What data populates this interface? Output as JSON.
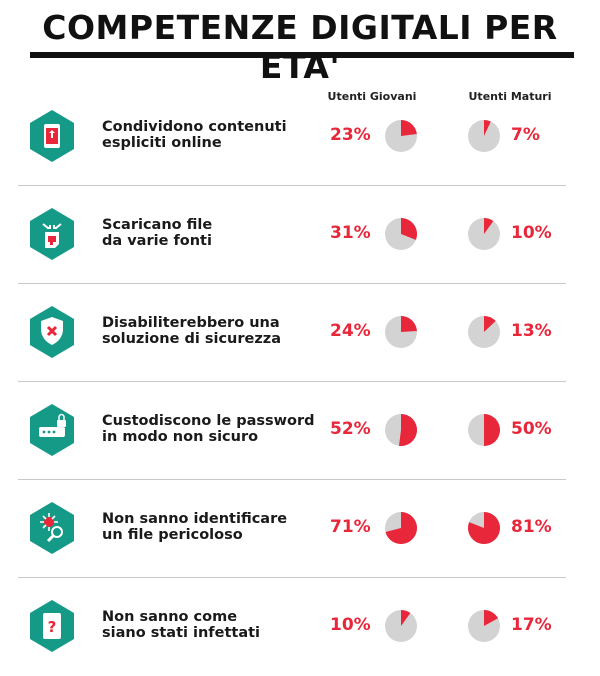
{
  "title": "COMPETENZE DIGITALI PER ETA'",
  "columns": [
    "Utenti Giovani",
    "Utenti Maturi"
  ],
  "colors": {
    "accent": "#e8273b",
    "pie_bg": "#d3d3d3",
    "icon_bg": "#159a87"
  },
  "rows": [
    {
      "icon": "share-tablet-icon",
      "line1": "Condividono contenuti",
      "line2": "espliciti online",
      "young_label": "23%",
      "old_label": "7%"
    },
    {
      "icon": "download-file-icon",
      "line1": "Scaricano file",
      "line2": "da varie fonti",
      "young_label": "31%",
      "old_label": "10%"
    },
    {
      "icon": "shield-x-icon",
      "line1": "Disabiliterebbero una",
      "line2": "soluzione di sicurezza",
      "young_label": "24%",
      "old_label": "13%"
    },
    {
      "icon": "password-lock-icon",
      "line1": "Custodiscono le password",
      "line2": "in modo non sicuro",
      "young_label": "52%",
      "old_label": "50%"
    },
    {
      "icon": "malware-magnifier-icon",
      "line1": "Non sanno identificare",
      "line2": "un file pericoloso",
      "young_label": "71%",
      "old_label": "81%"
    },
    {
      "icon": "question-tablet-icon",
      "line1": "Non sanno come",
      "line2": "siano stati infettati",
      "young_label": "10%",
      "old_label": "17%"
    }
  ],
  "chart_data": {
    "type": "pie",
    "categories": [
      "Condividono contenuti espliciti online",
      "Scaricano file da varie fonti",
      "Disabiliterebbero una soluzione di sicurezza",
      "Custodiscono le password in modo non sicuro",
      "Non sanno identificare un file pericoloso",
      "Non sanno come siano stati infettati"
    ],
    "series": [
      {
        "name": "Utenti Giovani",
        "values": [
          23,
          31,
          24,
          52,
          71,
          10
        ]
      },
      {
        "name": "Utenti Maturi",
        "values": [
          7,
          10,
          13,
          50,
          81,
          17
        ]
      }
    ],
    "unit": "%",
    "title": "COMPETENZE DIGITALI PER ETA'"
  }
}
